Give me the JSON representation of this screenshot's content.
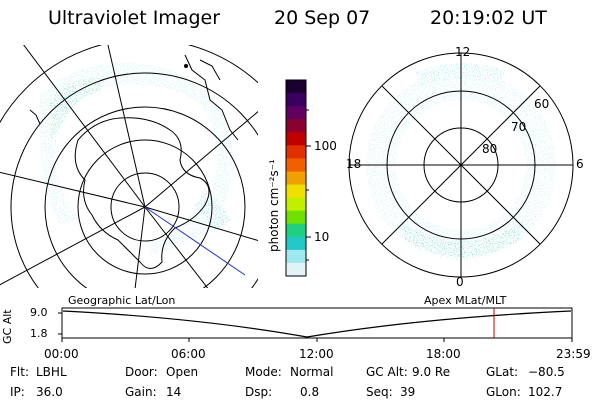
{
  "header": {
    "instrument": "Ultraviolet Imager",
    "date": "20 Sep 07",
    "time": "20:19:02 UT"
  },
  "colorbar": {
    "unit_label": "photon cm⁻²s⁻¹",
    "ticks": [
      "100",
      "10"
    ],
    "colors": [
      "#1a0030",
      "#3a0060",
      "#600060",
      "#8a0030",
      "#c00000",
      "#e03000",
      "#f06000",
      "#f0a000",
      "#f0e000",
      "#c0f000",
      "#70e000",
      "#20d080",
      "#20c8c8",
      "#a0e8f0",
      "#e0f4f8"
    ]
  },
  "left_map": {
    "caption": "Geographic Lat/Lon"
  },
  "right_map": {
    "caption": "Apex  MLat/MLT",
    "lat_labels": [
      "60",
      "70",
      "80"
    ],
    "mlt_labels": {
      "top": "12",
      "left": "18",
      "right": "6",
      "bottom": "0"
    }
  },
  "timeline": {
    "ylabel": "GC Alt",
    "yticks": [
      "9.0",
      "1.8"
    ],
    "xticks": [
      "00:00",
      "06:00",
      "12:00",
      "18:00",
      "23:59"
    ],
    "marker_time": "20:19",
    "marker_fraction": 0.847
  },
  "status": {
    "flt_label": "Flt:",
    "flt_value": "LBHL",
    "ip_label": "IP:",
    "ip_value": "36.0",
    "door_label": "Door:",
    "door_value": "Open",
    "gain_label": "Gain:",
    "gain_value": "14",
    "mode_label": "Mode:",
    "mode_value": "Normal",
    "dsp_label": "Dsp:",
    "dsp_value": "0.8",
    "gcalt_label": "GC Alt:",
    "gcalt_value": "9.0 Re",
    "seq_label": "Seq:",
    "seq_value": "39",
    "glat_label": "GLat:",
    "glat_value": "−80.5",
    "glon_label": "GLon:",
    "glon_value": "102.7"
  }
}
